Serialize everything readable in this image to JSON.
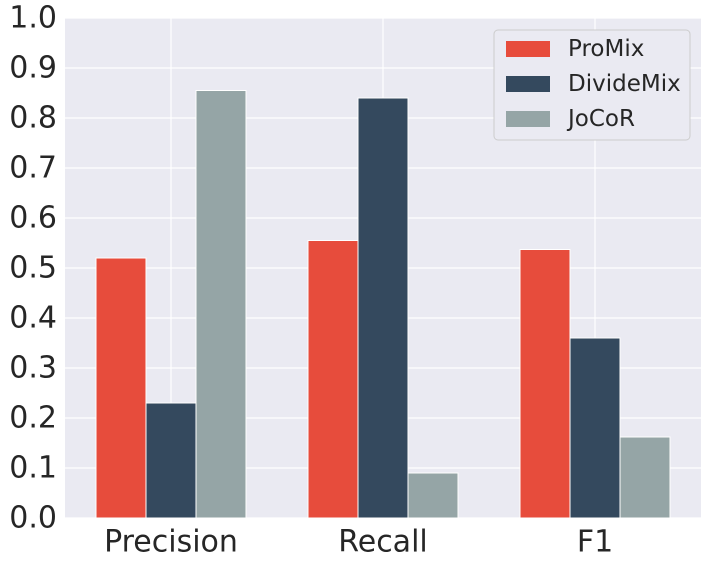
{
  "chart_data": {
    "type": "bar",
    "title": "",
    "xlabel": "",
    "ylabel": "",
    "categories": [
      "Precision",
      "Recall",
      "F1"
    ],
    "series": [
      {
        "name": "ProMix",
        "color": "#e74c3c",
        "values": [
          0.52,
          0.555,
          0.537
        ]
      },
      {
        "name": "DivideMix",
        "color": "#34495e",
        "values": [
          0.23,
          0.84,
          0.36
        ]
      },
      {
        "name": "JoCoR",
        "color": "#95a5a6",
        "values": [
          0.855,
          0.09,
          0.162
        ]
      }
    ],
    "ylim": [
      0,
      1.0
    ],
    "yticks": [
      "0.0",
      "0.1",
      "0.2",
      "0.3",
      "0.4",
      "0.5",
      "0.6",
      "0.7",
      "0.8",
      "0.9",
      "1.0"
    ],
    "grid": true,
    "legend_position": "top-right",
    "colors": {
      "background": "#eaeaf2",
      "grid": "#ffffff",
      "text": "#262626"
    }
  }
}
